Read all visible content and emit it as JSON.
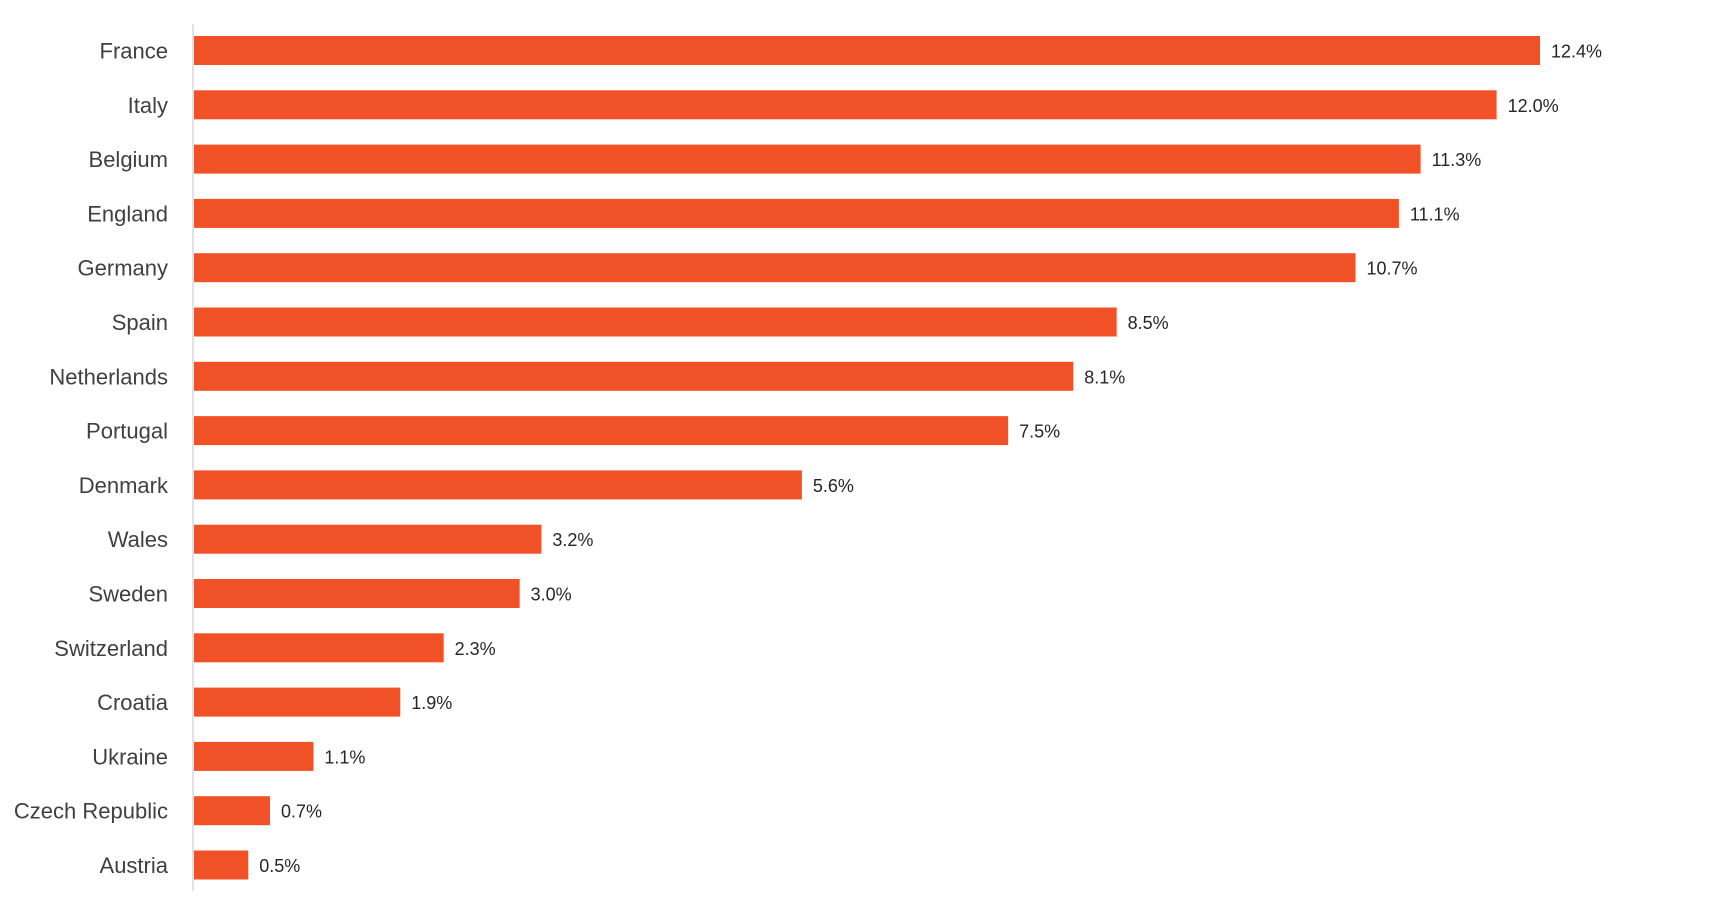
{
  "chart_data": {
    "type": "bar",
    "orientation": "horizontal",
    "categories": [
      "France",
      "Italy",
      "Belgium",
      "England",
      "Germany",
      "Spain",
      "Netherlands",
      "Portugal",
      "Denmark",
      "Wales",
      "Sweden",
      "Switzerland",
      "Croatia",
      "Ukraine",
      "Czech Republic",
      "Austria"
    ],
    "values": [
      12.4,
      12.0,
      11.3,
      11.1,
      10.7,
      8.5,
      8.1,
      7.5,
      5.6,
      3.2,
      3.0,
      2.3,
      1.9,
      1.1,
      0.7,
      0.5
    ],
    "data_labels": [
      "12.4%",
      "12.0%",
      "11.3%",
      "11.1%",
      "10.7%",
      "8.5%",
      "8.1%",
      "7.5%",
      "5.6%",
      "3.2%",
      "3.0%",
      "2.3%",
      "1.9%",
      "1.1%",
      "0.7%",
      "0.5%"
    ],
    "unit": "%",
    "title": "",
    "xlabel": "",
    "ylabel": "",
    "xlim": [
      0,
      12.4
    ],
    "grid": false,
    "legend": "none",
    "bar_color": "#F05127",
    "axis_color": "#D9D9D9"
  }
}
